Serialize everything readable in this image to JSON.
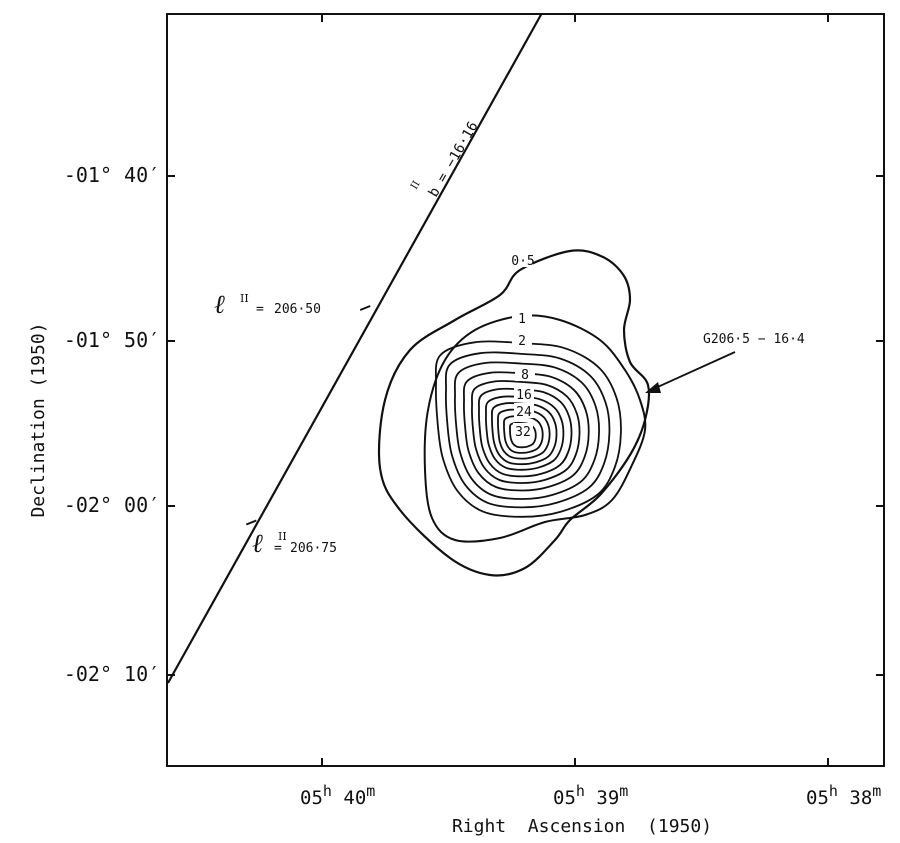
{
  "chart_data": {
    "type": "contour",
    "xlabel": "Right  Ascension  (1950)",
    "ylabel": "Declination  (1950)",
    "xticks": [
      {
        "h": "05",
        "m": "40"
      },
      {
        "h": "05",
        "m": "39"
      },
      {
        "h": "05",
        "m": "38"
      }
    ],
    "yticks": [
      "-01° 40′",
      "-01° 50′",
      "-02° 00′",
      "-02° 10′"
    ],
    "contour_levels": [
      0.5,
      1,
      2,
      8,
      16,
      24,
      32
    ],
    "contour_labels": [
      "0·5",
      "1",
      "2",
      "8",
      "16",
      "24",
      "32"
    ],
    "source": {
      "name": "G206·5 − 16·4",
      "ra": "05h 39m 10s",
      "dec": "-01° 54′",
      "peak": 32
    },
    "galactic_line": {
      "label": "b = −16·16",
      "label_sup": "II",
      "points": [
        {
          "ra": "05h 39m 10s",
          "dec": "-01° 31′"
        },
        {
          "ra": "05h 40m 36s",
          "dec": "-02° 10′"
        }
      ]
    },
    "galactic_ticks": [
      {
        "l": "206·50",
        "ra": "05h 39m 50s",
        "dec": "-01° 48′"
      },
      {
        "l": "206·75",
        "ra": "05h 40m 17s",
        "dec": "-02° 01′"
      }
    ],
    "grid": false
  }
}
